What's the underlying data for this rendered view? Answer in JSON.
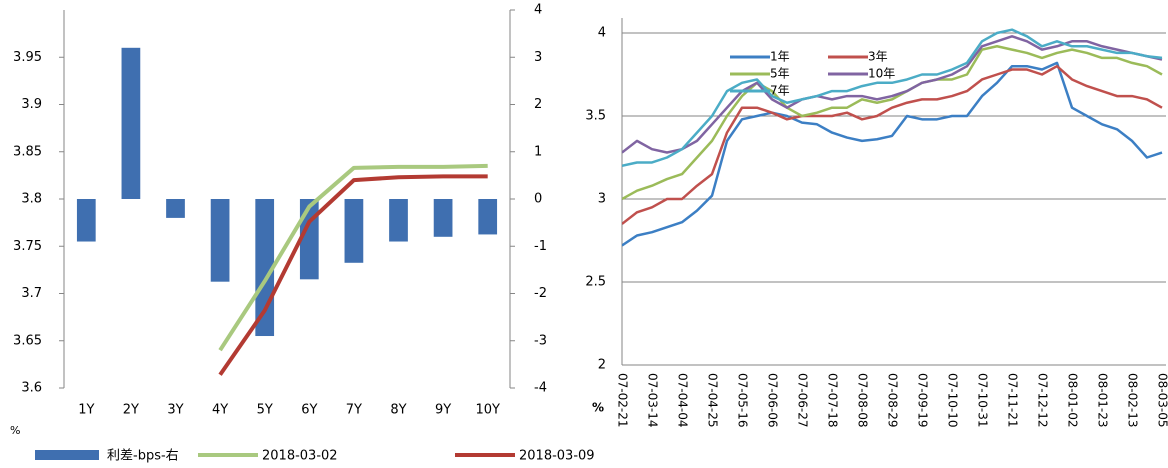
{
  "chart_data": [
    {
      "type": "combo",
      "y_label": "%",
      "categories": [
        "1Y",
        "2Y",
        "3Y",
        "4Y",
        "5Y",
        "6Y",
        "7Y",
        "8Y",
        "9Y",
        "10Y"
      ],
      "ylim": [
        3.6,
        4.0
      ],
      "yticks": [
        3.6,
        3.65,
        3.7,
        3.75,
        3.8,
        3.85,
        3.9,
        3.95
      ],
      "y2lim": [
        -4,
        4
      ],
      "y2ticks": [
        -4,
        -3,
        -2,
        -1,
        0,
        1,
        2,
        3,
        4
      ],
      "grid": false,
      "series": [
        {
          "name": "利差-bps-右",
          "type": "bar",
          "axis": "y2",
          "color": "#3f6fb0",
          "values": [
            -0.9,
            3.2,
            -0.4,
            -1.75,
            -2.9,
            -1.7,
            -1.35,
            -0.9,
            -0.8,
            -0.75
          ]
        },
        {
          "name": "2018-03-02",
          "type": "line",
          "color": "#a9c97f",
          "values": [
            null,
            null,
            null,
            3.64,
            3.713,
            3.792,
            3.833,
            3.834,
            3.834,
            3.835
          ]
        },
        {
          "name": "2018-03-09",
          "type": "line",
          "color": "#b33a32",
          "values": [
            null,
            null,
            null,
            3.614,
            3.682,
            3.776,
            3.82,
            3.823,
            3.824,
            3.824
          ]
        }
      ]
    },
    {
      "type": "line",
      "y_label": "%",
      "categories": [
        "07-02-21",
        null,
        "07-03-14",
        null,
        "07-04-04",
        null,
        "07-04-25",
        null,
        "07-05-16",
        null,
        "07-06-06",
        null,
        "07-06-27",
        null,
        "07-07-18",
        null,
        "07-08-08",
        null,
        "07-08-29",
        null,
        "07-09-19",
        null,
        "07-10-10",
        null,
        "07-10-31",
        null,
        "07-11-21",
        null,
        "07-12-12",
        null,
        "08-01-02",
        null,
        "08-01-23",
        null,
        "08-02-13",
        null,
        "08-03-05"
      ],
      "ylim": [
        2,
        4
      ],
      "yticks": [
        2,
        2.5,
        3,
        3.5,
        4
      ],
      "grid": true,
      "series": [
        {
          "name": "1年",
          "color": "#3c7fc4",
          "values": [
            2.72,
            2.78,
            2.8,
            2.83,
            2.86,
            2.93,
            3.02,
            3.35,
            3.48,
            3.5,
            3.52,
            3.5,
            3.46,
            3.45,
            3.4,
            3.37,
            3.35,
            3.36,
            3.38,
            3.5,
            3.48,
            3.48,
            3.5,
            3.5,
            3.62,
            3.7,
            3.8,
            3.8,
            3.78,
            3.82,
            3.55,
            3.5,
            3.45,
            3.42,
            3.35,
            3.25,
            3.28
          ]
        },
        {
          "name": "3年",
          "color": "#c0504d",
          "values": [
            2.85,
            2.92,
            2.95,
            3.0,
            3.0,
            3.08,
            3.15,
            3.4,
            3.55,
            3.55,
            3.52,
            3.48,
            3.5,
            3.5,
            3.5,
            3.52,
            3.48,
            3.5,
            3.55,
            3.58,
            3.6,
            3.6,
            3.62,
            3.65,
            3.72,
            3.75,
            3.78,
            3.78,
            3.75,
            3.8,
            3.72,
            3.68,
            3.65,
            3.62,
            3.62,
            3.6,
            3.55
          ]
        },
        {
          "name": "5年",
          "color": "#9bbb59",
          "values": [
            3.0,
            3.05,
            3.08,
            3.12,
            3.15,
            3.25,
            3.35,
            3.5,
            3.62,
            3.7,
            3.65,
            3.55,
            3.5,
            3.52,
            3.55,
            3.55,
            3.6,
            3.58,
            3.6,
            3.65,
            3.7,
            3.72,
            3.72,
            3.75,
            3.9,
            3.92,
            3.9,
            3.88,
            3.85,
            3.88,
            3.9,
            3.88,
            3.85,
            3.85,
            3.82,
            3.8,
            3.75
          ]
        },
        {
          "name": "10年",
          "color": "#8064a2",
          "values": [
            3.28,
            3.35,
            3.3,
            3.28,
            3.3,
            3.35,
            3.45,
            3.55,
            3.65,
            3.7,
            3.6,
            3.55,
            3.6,
            3.62,
            3.6,
            3.62,
            3.62,
            3.6,
            3.62,
            3.65,
            3.7,
            3.72,
            3.75,
            3.8,
            3.92,
            3.95,
            3.98,
            3.95,
            3.9,
            3.92,
            3.95,
            3.95,
            3.92,
            3.9,
            3.88,
            3.86,
            3.84
          ]
        },
        {
          "name": "7年",
          "color": "#4bacc6",
          "values": [
            3.2,
            3.22,
            3.22,
            3.25,
            3.3,
            3.4,
            3.5,
            3.65,
            3.7,
            3.72,
            3.62,
            3.58,
            3.6,
            3.62,
            3.65,
            3.65,
            3.68,
            3.7,
            3.7,
            3.72,
            3.75,
            3.75,
            3.78,
            3.82,
            3.95,
            4.0,
            4.02,
            3.98,
            3.92,
            3.95,
            3.92,
            3.92,
            3.9,
            3.88,
            3.88,
            3.86,
            3.85
          ]
        }
      ]
    }
  ]
}
